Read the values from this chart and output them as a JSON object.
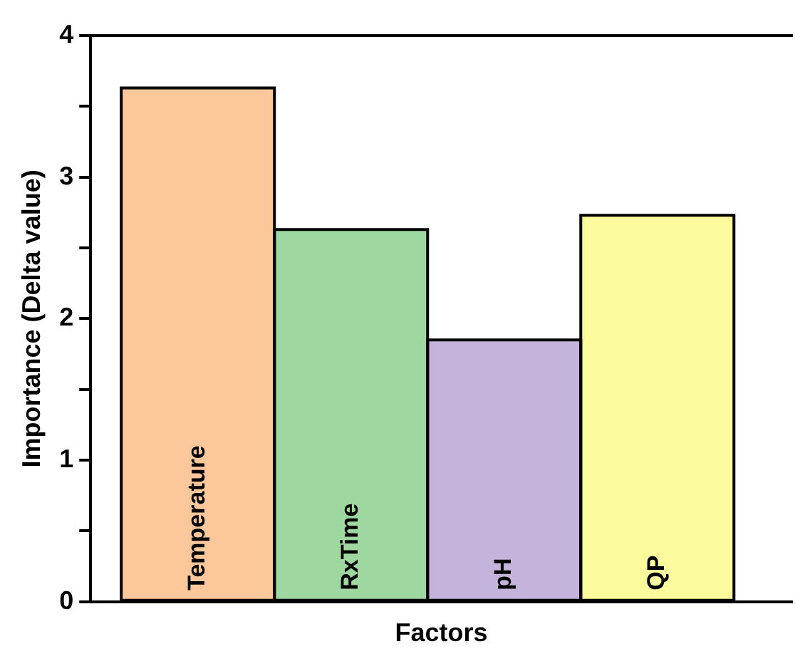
{
  "chart_data": {
    "type": "bar",
    "xlabel": "Factors",
    "ylabel": "Importance (Delta value)",
    "categories": [
      "Temperature",
      "RxTime",
      "pH",
      "QP"
    ],
    "values": [
      3.63,
      2.63,
      1.85,
      2.73
    ],
    "colors": [
      "#fcc89b",
      "#9ed8a0",
      "#c4b4dc",
      "#fbfa9c"
    ],
    "ylim": [
      0,
      4
    ],
    "yticks": [
      0,
      {
        "value": 0.5,
        "label": null
      },
      1,
      {
        "value": 1.5,
        "label": null
      },
      2,
      {
        "value": 2.5,
        "label": null
      },
      3,
      {
        "value": 3.5,
        "label": null
      },
      4
    ],
    "grid": false,
    "legend": false
  }
}
